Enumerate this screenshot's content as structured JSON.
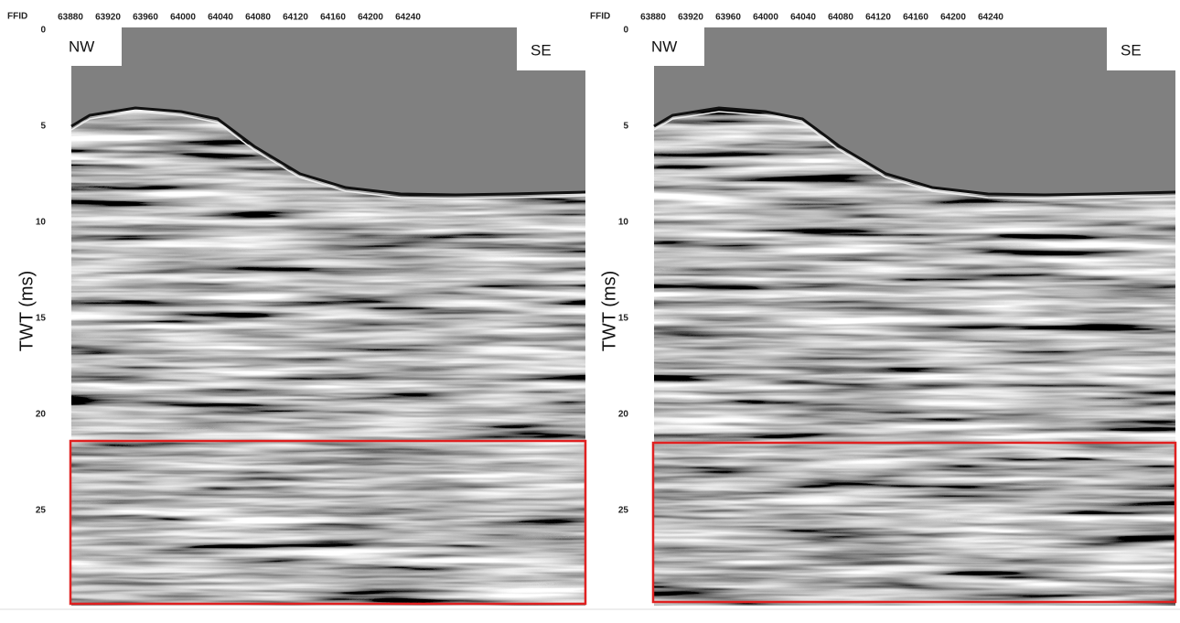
{
  "panels": [
    {
      "x_axis_label": "FFID",
      "x_ticks": [
        "63880",
        "63920",
        "63960",
        "64000",
        "64040",
        "64080",
        "64120",
        "64160",
        "64200",
        "64240"
      ],
      "y_axis_label": "TWT (ms)",
      "y_ticks": [
        "0",
        "5",
        "10",
        "15",
        "20",
        "25"
      ],
      "left_label": "NW",
      "right_label": "SE"
    },
    {
      "x_axis_label": "FFID",
      "x_ticks": [
        "63880",
        "63920",
        "63960",
        "64000",
        "64040",
        "64080",
        "64120",
        "64160",
        "64200",
        "64240"
      ],
      "y_axis_label": "TWT (ms)",
      "y_ticks": [
        "0",
        "5",
        "10",
        "15",
        "20",
        "25"
      ],
      "left_label": "NW",
      "right_label": "SE"
    }
  ]
}
